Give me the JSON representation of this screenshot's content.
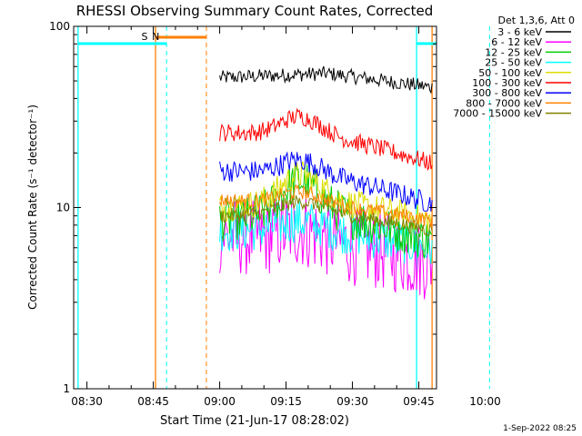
{
  "chart_data": {
    "type": "line",
    "title": "RHESSI Observing Summary Count Rates, Corrected",
    "xlabel": "Start Time (21-Jun-17 08:28:02)",
    "ylabel": "Corrected Count Rate (s⁻¹ detector⁻¹)",
    "y_scale": "log",
    "ylim": [
      1,
      100
    ],
    "x_range_minutes_after_0828": [
      -1,
      81
    ],
    "x_ticks": [
      {
        "label": "08:30",
        "minute": 2
      },
      {
        "label": "08:45",
        "minute": 17
      },
      {
        "label": "09:00",
        "minute": 32
      },
      {
        "label": "09:15",
        "minute": 47
      },
      {
        "label": "09:30",
        "minute": 62
      },
      {
        "label": "09:45",
        "minute": 77
      },
      {
        "label": "10:00",
        "minute": 92
      }
    ],
    "y_ticks": [
      {
        "label": "1",
        "value": 1
      },
      {
        "label": "10",
        "value": 10
      },
      {
        "label": "100",
        "value": 100
      }
    ],
    "legend_title": "Det 1,3,6, Att 0",
    "legend_position": "outside-right",
    "data_interval_minutes": [
      32,
      80
    ],
    "series": [
      {
        "name": "3 - 6 keV",
        "color": "#000000",
        "start": 52,
        "mid": 55,
        "end": 46,
        "bump": 0.0,
        "noise": 0.04
      },
      {
        "name": "6 - 12 keV",
        "color": "#ff00ff",
        "start": 7.0,
        "mid": 6.5,
        "end": 5.0,
        "bump": 0.06,
        "noise": 0.22
      },
      {
        "name": "12 - 25 keV",
        "color": "#00cc00",
        "start": 8.5,
        "mid": 9.5,
        "end": 6.5,
        "bump": 0.18,
        "noise": 0.12
      },
      {
        "name": "25 - 50 keV",
        "color": "#00ffff",
        "start": 7.5,
        "mid": 7.5,
        "end": 6.0,
        "bump": 0.05,
        "noise": 0.12
      },
      {
        "name": "50 - 100 keV",
        "color": "#dddd00",
        "start": 10.0,
        "mid": 11.0,
        "end": 8.5,
        "bump": 0.15,
        "noise": 0.08
      },
      {
        "name": "100 - 300 keV",
        "color": "#ff0000",
        "start": 26,
        "mid": 25,
        "end": 17.5,
        "bump": 0.1,
        "noise": 0.05
      },
      {
        "name": "300 - 800 keV",
        "color": "#0000ff",
        "start": 16,
        "mid": 15,
        "end": 10.5,
        "bump": 0.08,
        "noise": 0.06
      },
      {
        "name": "800 - 7000 keV",
        "color": "#ff8000",
        "start": 11,
        "mid": 10.5,
        "end": 8.5,
        "bump": 0.06,
        "noise": 0.04
      },
      {
        "name": "7000 - 15000 keV",
        "color": "#808000",
        "start": 9,
        "mid": 9.5,
        "end": 7.5,
        "bump": 0.06,
        "noise": 0.04
      }
    ],
    "annotations": [
      {
        "label": "S",
        "color": "#ff8000",
        "minute": 17.5
      },
      {
        "label": "N",
        "color": "#00ffff",
        "minute": 20
      }
    ]
  },
  "footer": {
    "date_stamp": "1-Sep-2022 08:25"
  }
}
